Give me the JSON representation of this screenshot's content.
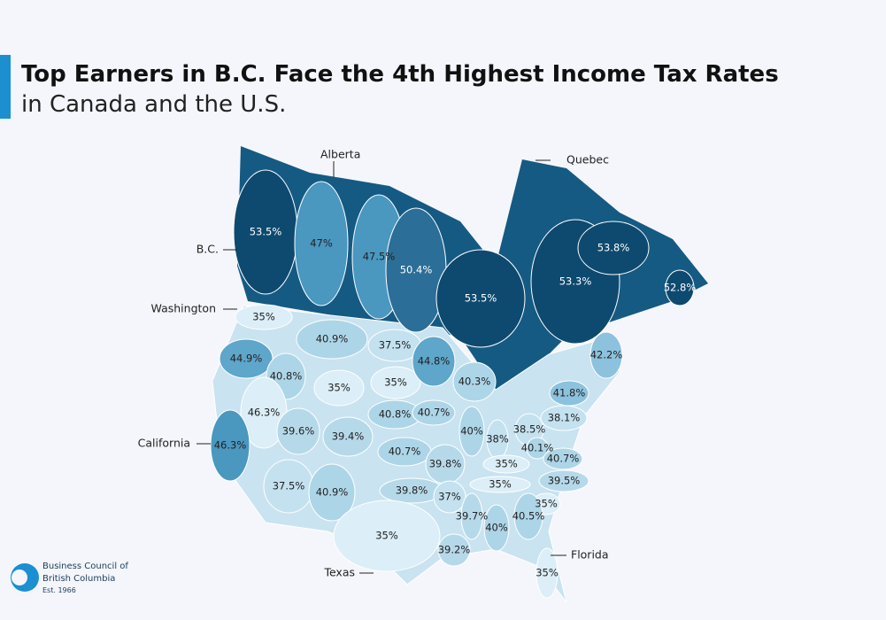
{
  "header": {
    "title": "Top Earners in B.C. Face the 4th Highest Income Tax Rates",
    "subtitle": "in Canada and the U.S."
  },
  "regions": [
    {
      "label": "53.5%",
      "color": "#0e4a6f"
    },
    {
      "label": "47%",
      "color": "#4a97c0"
    },
    {
      "label": "47.5%",
      "color": "#4a97c0"
    },
    {
      "label": "50.4%",
      "color": "#2b6e98"
    },
    {
      "label": "53.5%",
      "color": "#0e4a6f"
    },
    {
      "label": "53.3%",
      "color": "#0e4a6f"
    },
    {
      "label": "53.8%",
      "color": "#0e4a6f"
    },
    {
      "label": "52.8%",
      "color": "#0e4a6f"
    },
    {
      "label": "35%",
      "color": "#dceef7"
    },
    {
      "label": "40.9%",
      "color": "#add5e8"
    },
    {
      "label": "37.5%",
      "color": "#c4e1ef"
    },
    {
      "label": "44.9%",
      "color": "#5ea6ca"
    },
    {
      "label": "40.8%",
      "color": "#add5e8"
    },
    {
      "label": "35%",
      "color": "#dceef7"
    },
    {
      "label": "35%",
      "color": "#dceef7"
    },
    {
      "label": "44.8%",
      "color": "#5ea6ca"
    },
    {
      "label": "40.3%",
      "color": "#add5e8"
    },
    {
      "label": "42.2%",
      "color": "#8cc2dd"
    },
    {
      "label": "46.3%",
      "color": "#dceef7"
    },
    {
      "label": "46.3%",
      "color": "#4a97c0"
    },
    {
      "label": "39.6%",
      "color": "#b6d9ea"
    },
    {
      "label": "39.4%",
      "color": "#b6d9ea"
    },
    {
      "label": "40.8%",
      "color": "#add5e8"
    },
    {
      "label": "40.7%",
      "color": "#add5e8"
    },
    {
      "label": "40%",
      "color": "#add5e8"
    },
    {
      "label": "38%",
      "color": "#c4e1ef"
    },
    {
      "label": "38.5%",
      "color": "#c4e1ef"
    },
    {
      "label": "38.1%",
      "color": "#c4e1ef"
    },
    {
      "label": "41.8%",
      "color": "#8cc2dd"
    },
    {
      "label": "40.7%",
      "color": "#add5e8"
    },
    {
      "label": "39.8%",
      "color": "#b6d9ea"
    },
    {
      "label": "40.1%",
      "color": "#add5e8"
    },
    {
      "label": "40.7%",
      "color": "#add5e8"
    },
    {
      "label": "35%",
      "color": "#dceef7"
    },
    {
      "label": "35%",
      "color": "#dceef7"
    },
    {
      "label": "39.5%",
      "color": "#b6d9ea"
    },
    {
      "label": "37.5%",
      "color": "#c4e1ef"
    },
    {
      "label": "40.9%",
      "color": "#add5e8"
    },
    {
      "label": "39.8%",
      "color": "#b6d9ea"
    },
    {
      "label": "37%",
      "color": "#c4e1ef"
    },
    {
      "label": "35%",
      "color": "#dceef7"
    },
    {
      "label": "39.7%",
      "color": "#b6d9ea"
    },
    {
      "label": "40.5%",
      "color": "#add5e8"
    },
    {
      "label": "40%",
      "color": "#add5e8"
    },
    {
      "label": "35%",
      "color": "#dceef7"
    },
    {
      "label": "39.2%",
      "color": "#b6d9ea"
    },
    {
      "label": "35%",
      "color": "#dceef7"
    }
  ],
  "callouts": [
    "Alberta",
    "Quebec",
    "B.C.",
    "Washington",
    "California",
    "Texas",
    "Florida"
  ],
  "logo": {
    "line1": "Business Council of",
    "line2": "British Columbia",
    "est": "Est. 1966"
  }
}
